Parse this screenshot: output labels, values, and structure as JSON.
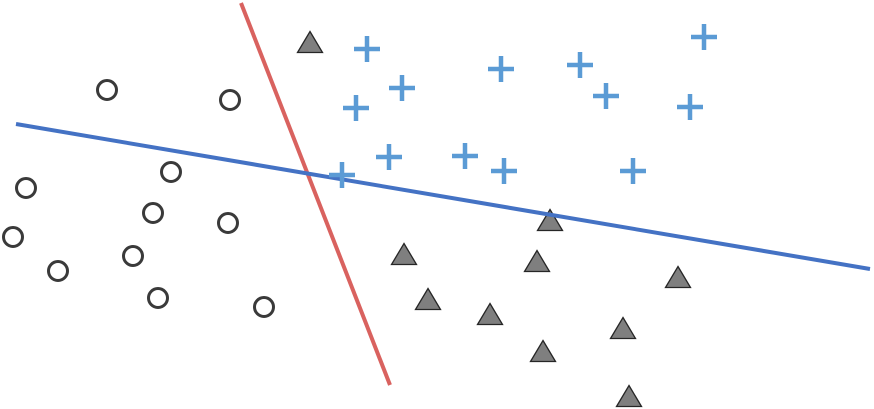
{
  "colors": {
    "background": "#ffffff",
    "red_line": "#d9625f",
    "blue_line": "#4472c4",
    "plus": "#5b9bd5",
    "triangle_fill": "#7f7f7f",
    "triangle_stroke": "#262626",
    "circle_stroke": "#3a3a3a"
  },
  "markers": {
    "circle": "circle-marker",
    "plus": "plus-marker",
    "triangle": "triangle-marker"
  }
}
